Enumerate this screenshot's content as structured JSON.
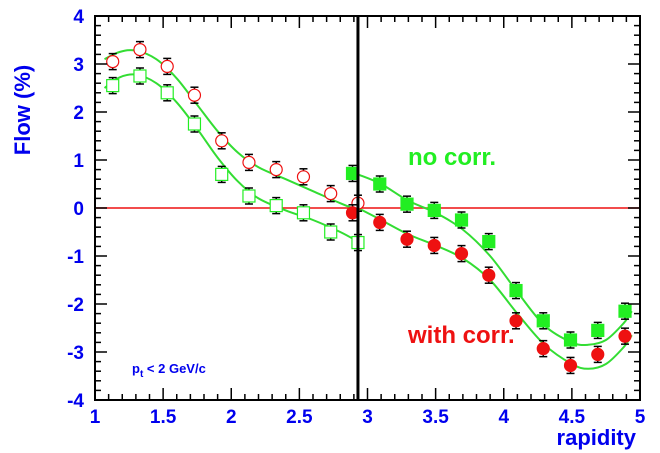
{
  "chart_data": {
    "type": "scatter",
    "xlabel": "rapidity",
    "ylabel": "Flow (%)",
    "xlim": [
      1,
      5
    ],
    "ylim": [
      -4,
      4
    ],
    "x_ticks": [
      "1",
      "1.5",
      "2",
      "2.5",
      "3",
      "3.5",
      "4",
      "4.5",
      "5"
    ],
    "y_ticks": [
      "4",
      "3",
      "2",
      "1",
      "0",
      "-1",
      "-2",
      "-3",
      "-4"
    ],
    "grid": false,
    "legend": "none",
    "zero_line_y": 0,
    "divider_x": 2.93,
    "colors": {
      "axis": "#0000ee",
      "green": "#22ee22",
      "red": "#ee1111",
      "green_curve": "#33dd33",
      "zero_line": "#ee1111",
      "divider": "#000000"
    },
    "annotations": {
      "no_corr": {
        "text": "no corr.",
        "color": "#22ee22"
      },
      "with_corr": {
        "text": "with corr.",
        "color": "#ee1111"
      },
      "pt_cut": {
        "base": "p",
        "sub": "t",
        "rest": " < 2 GeV/c",
        "color": "#0000ee"
      }
    },
    "series": [
      {
        "marker": "open-circle",
        "color": "#ee1111",
        "points": [
          [
            1.13,
            3.05
          ],
          [
            1.33,
            3.3
          ],
          [
            1.53,
            2.95
          ],
          [
            1.73,
            2.35
          ],
          [
            1.93,
            1.4
          ],
          [
            2.13,
            0.95
          ],
          [
            2.33,
            0.8
          ],
          [
            2.53,
            0.65
          ],
          [
            2.73,
            0.3
          ],
          [
            2.93,
            0.1
          ]
        ]
      },
      {
        "marker": "open-square",
        "color": "#22ee22",
        "points": [
          [
            1.13,
            2.55
          ],
          [
            1.33,
            2.75
          ],
          [
            1.53,
            2.4
          ],
          [
            1.73,
            1.75
          ],
          [
            1.93,
            0.7
          ],
          [
            2.13,
            0.25
          ],
          [
            2.33,
            0.05
          ],
          [
            2.53,
            -0.1
          ],
          [
            2.73,
            -0.5
          ],
          [
            2.93,
            -0.72
          ]
        ]
      },
      {
        "marker": "filled-square",
        "color": "#22ee22",
        "points": [
          [
            2.89,
            0.72
          ],
          [
            3.09,
            0.5
          ],
          [
            3.29,
            0.08
          ],
          [
            3.49,
            -0.05
          ],
          [
            3.69,
            -0.25
          ],
          [
            3.89,
            -0.7
          ],
          [
            4.09,
            -1.72
          ],
          [
            4.29,
            -2.35
          ],
          [
            4.49,
            -2.75
          ],
          [
            4.69,
            -2.55
          ],
          [
            4.89,
            -2.15
          ]
        ]
      },
      {
        "marker": "filled-circle",
        "color": "#ee1111",
        "points": [
          [
            2.89,
            -0.1
          ],
          [
            3.09,
            -0.3
          ],
          [
            3.29,
            -0.65
          ],
          [
            3.49,
            -0.78
          ],
          [
            3.69,
            -0.95
          ],
          [
            3.89,
            -1.4
          ],
          [
            4.09,
            -2.35
          ],
          [
            4.29,
            -2.93
          ],
          [
            4.49,
            -3.28
          ],
          [
            4.69,
            -3.05
          ],
          [
            4.89,
            -2.67
          ]
        ]
      }
    ],
    "curves": [
      {
        "color": "#33dd33",
        "points": [
          [
            1.07,
            3.1
          ],
          [
            1.18,
            3.25
          ],
          [
            1.3,
            3.28
          ],
          [
            1.45,
            3.1
          ],
          [
            1.6,
            2.7
          ],
          [
            1.75,
            2.15
          ],
          [
            1.9,
            1.6
          ],
          [
            2.05,
            1.15
          ],
          [
            2.2,
            0.85
          ],
          [
            2.4,
            0.6
          ],
          [
            2.6,
            0.35
          ],
          [
            2.8,
            0.1
          ],
          [
            2.93,
            -0.05
          ]
        ]
      },
      {
        "color": "#33dd33",
        "points": [
          [
            1.07,
            2.5
          ],
          [
            1.18,
            2.72
          ],
          [
            1.3,
            2.78
          ],
          [
            1.45,
            2.6
          ],
          [
            1.6,
            2.2
          ],
          [
            1.75,
            1.65
          ],
          [
            1.9,
            1.05
          ],
          [
            2.05,
            0.55
          ],
          [
            2.2,
            0.2
          ],
          [
            2.4,
            -0.05
          ],
          [
            2.6,
            -0.25
          ],
          [
            2.8,
            -0.5
          ],
          [
            2.93,
            -0.7
          ]
        ]
      },
      {
        "color": "#33dd33",
        "points": [
          [
            2.93,
            0.7
          ],
          [
            3.1,
            0.5
          ],
          [
            3.3,
            0.15
          ],
          [
            3.5,
            -0.1
          ],
          [
            3.7,
            -0.45
          ],
          [
            3.9,
            -1.0
          ],
          [
            4.1,
            -1.75
          ],
          [
            4.3,
            -2.45
          ],
          [
            4.5,
            -2.8
          ],
          [
            4.62,
            -2.85
          ],
          [
            4.75,
            -2.75
          ],
          [
            4.88,
            -2.4
          ],
          [
            4.94,
            -2.15
          ]
        ]
      },
      {
        "color": "#33dd33",
        "points": [
          [
            2.93,
            0.0
          ],
          [
            3.1,
            -0.25
          ],
          [
            3.3,
            -0.55
          ],
          [
            3.5,
            -0.78
          ],
          [
            3.7,
            -1.05
          ],
          [
            3.9,
            -1.5
          ],
          [
            4.1,
            -2.2
          ],
          [
            4.3,
            -2.85
          ],
          [
            4.5,
            -3.25
          ],
          [
            4.62,
            -3.35
          ],
          [
            4.75,
            -3.25
          ],
          [
            4.88,
            -2.9
          ],
          [
            4.94,
            -2.65
          ]
        ]
      }
    ]
  }
}
